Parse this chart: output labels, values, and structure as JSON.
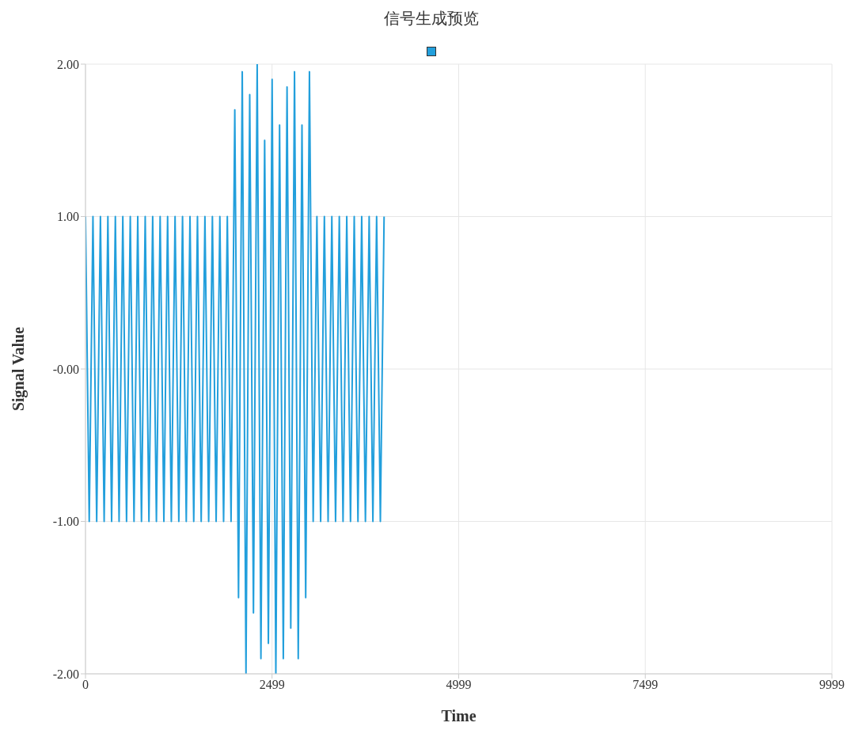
{
  "chart_data": {
    "type": "line",
    "title": "信号生成预览",
    "xlabel": "Time",
    "ylabel": "Signal Value",
    "xlim": [
      0,
      9999
    ],
    "xticks": [
      0,
      2499,
      4999,
      7499,
      9999
    ],
    "ylim": [
      -2,
      2
    ],
    "yticks": [
      {
        "value": -2,
        "label": "-2.00"
      },
      {
        "value": -1,
        "label": "-1.00"
      },
      {
        "value": 0,
        "label": "-0.00"
      },
      {
        "value": 1,
        "label": "1.00"
      },
      {
        "value": 2,
        "label": "2.00"
      }
    ],
    "grid": true,
    "marker": "none",
    "x": [
      0,
      50,
      100,
      150,
      200,
      250,
      300,
      350,
      400,
      450,
      500,
      550,
      600,
      650,
      700,
      750,
      800,
      850,
      900,
      950,
      1000,
      1050,
      1100,
      1150,
      1200,
      1250,
      1300,
      1350,
      1400,
      1450,
      1500,
      1550,
      1600,
      1650,
      1700,
      1750,
      1800,
      1850,
      1900,
      1950,
      2000,
      2050,
      2100,
      2150,
      2200,
      2250,
      2300,
      2350,
      2400,
      2450,
      2500,
      2550,
      2600,
      2650,
      2700,
      2750,
      2800,
      2850,
      2900,
      2950,
      3000,
      3050,
      3100,
      3150,
      3200,
      3250,
      3300,
      3350,
      3400,
      3450,
      3500,
      3550,
      3600,
      3650,
      3700,
      3750,
      3800,
      3850,
      3900,
      3950,
      4000
    ],
    "series": [
      {
        "color": "#229fdc",
        "values": [
          1,
          -1,
          1,
          -1,
          1,
          -1,
          1,
          -1,
          1,
          -1,
          1,
          -1,
          1,
          -1,
          1,
          -1,
          1,
          -1,
          1,
          -1,
          1,
          -1,
          1,
          -1,
          1,
          -1,
          1,
          -1,
          1,
          -1,
          1,
          -1,
          1,
          -1,
          1,
          -1,
          1,
          -1,
          1,
          -1,
          1.7,
          -1.5,
          1.95,
          -2.0,
          1.8,
          -1.6,
          2.0,
          -1.9,
          1.5,
          -1.8,
          1.9,
          -2.0,
          1.6,
          -1.9,
          1.85,
          -1.7,
          1.95,
          -1.9,
          1.6,
          -1.5,
          1.95,
          -1,
          1,
          -1,
          1,
          -1,
          1,
          -1,
          1,
          -1,
          1,
          -1,
          1,
          -1,
          1,
          -1,
          1,
          -1,
          1,
          -1,
          1
        ]
      }
    ]
  }
}
